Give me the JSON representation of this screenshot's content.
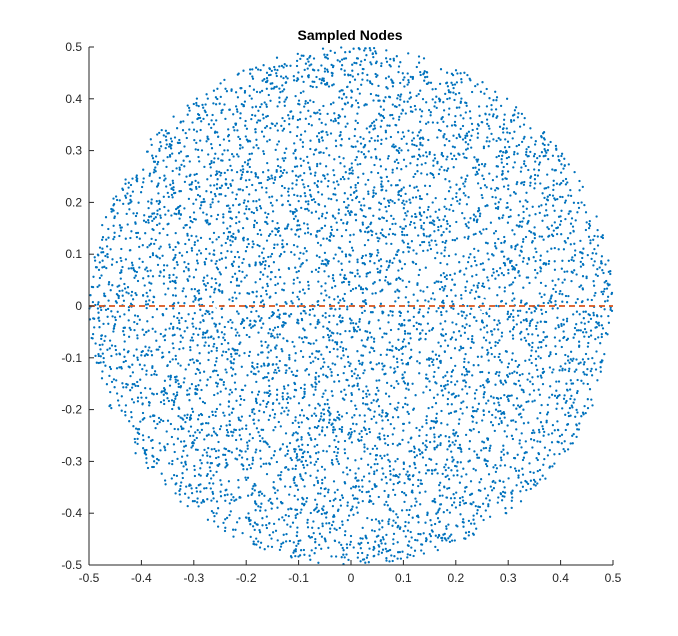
{
  "chart_data": {
    "type": "scatter",
    "title": "Sampled Nodes",
    "xlabel": "",
    "ylabel": "",
    "xlim": [
      -0.5,
      0.5
    ],
    "ylim": [
      -0.5,
      0.5
    ],
    "xticks": [
      -0.5,
      -0.4,
      -0.3,
      -0.2,
      -0.1,
      0,
      0.1,
      0.2,
      0.3,
      0.4,
      0.5
    ],
    "xtick_labels": [
      "-0.5",
      "-0.4",
      "-0.3",
      "-0.2",
      "-0.1",
      "0",
      "0.1",
      "0.2",
      "0.3",
      "0.4",
      "0.5"
    ],
    "yticks": [
      0.5,
      0.4,
      0.3,
      0.2,
      0.1,
      0,
      -0.1,
      -0.2,
      -0.3,
      -0.4,
      -0.5
    ],
    "ytick_labels": [
      "0.5",
      "0.4",
      "0.3",
      "0.2",
      "0.1",
      "0",
      "-0.1",
      "-0.2",
      "-0.3",
      "-0.4",
      "-0.5"
    ],
    "grid": false,
    "series": [
      {
        "kind": "scatter-disk",
        "color": "#0072BD",
        "center": [
          0,
          0
        ],
        "radius": 0.5,
        "approx_points": 9000
      },
      {
        "kind": "line",
        "color": "#D95319",
        "style": "dashed",
        "x": [
          -0.5,
          0.5
        ],
        "y": [
          0,
          0
        ]
      },
      {
        "kind": "markers",
        "color": "#ffffff",
        "x": [
          -0.25,
          0.25
        ],
        "y": [
          0,
          0
        ]
      }
    ]
  }
}
